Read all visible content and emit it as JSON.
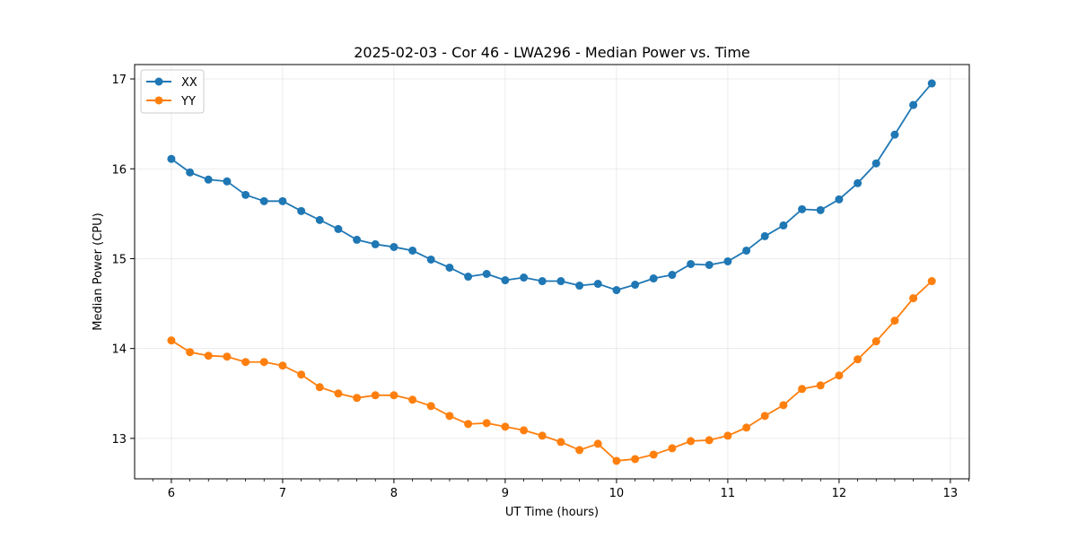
{
  "chart_data": {
    "type": "line",
    "title": "2025-02-03 - Cor 46 - LWA296 - Median Power vs. Time",
    "xlabel": "UT Time (hours)",
    "ylabel": "Median Power (CPU)",
    "xlim": [
      5.67,
      13.17
    ],
    "ylim": [
      12.55,
      17.16
    ],
    "xticks": [
      6,
      7,
      8,
      9,
      10,
      11,
      12,
      13
    ],
    "yticks": [
      13,
      14,
      15,
      16,
      17
    ],
    "grid": true,
    "legend_position": "top-left",
    "x": [
      6.0,
      6.167,
      6.333,
      6.5,
      6.667,
      6.833,
      7.0,
      7.167,
      7.333,
      7.5,
      7.667,
      7.833,
      8.0,
      8.167,
      8.333,
      8.5,
      8.667,
      8.833,
      9.0,
      9.167,
      9.333,
      9.5,
      9.667,
      9.833,
      10.0,
      10.167,
      10.333,
      10.5,
      10.667,
      10.833,
      11.0,
      11.167,
      11.333,
      11.5,
      11.667,
      11.833,
      12.0,
      12.167,
      12.333,
      12.5,
      12.667,
      12.833
    ],
    "series": [
      {
        "name": "XX",
        "color": "#1f77b4",
        "values": [
          16.11,
          15.96,
          15.88,
          15.86,
          15.71,
          15.64,
          15.64,
          15.53,
          15.43,
          15.33,
          15.21,
          15.16,
          15.13,
          15.09,
          14.99,
          14.9,
          14.8,
          14.83,
          14.76,
          14.79,
          14.75,
          14.75,
          14.7,
          14.72,
          14.65,
          14.71,
          14.78,
          14.82,
          14.94,
          14.93,
          14.97,
          15.09,
          15.25,
          15.37,
          15.55,
          15.54,
          15.66,
          15.84,
          16.06,
          16.38,
          16.71,
          16.95
        ]
      },
      {
        "name": "YY",
        "color": "#ff7f0e",
        "values": [
          14.09,
          13.96,
          13.92,
          13.91,
          13.85,
          13.85,
          13.81,
          13.71,
          13.57,
          13.5,
          13.45,
          13.48,
          13.48,
          13.43,
          13.36,
          13.25,
          13.16,
          13.17,
          13.13,
          13.09,
          13.03,
          12.96,
          12.87,
          12.94,
          12.75,
          12.77,
          12.82,
          12.89,
          12.97,
          12.98,
          13.03,
          13.12,
          13.25,
          13.37,
          13.55,
          13.59,
          13.7,
          13.88,
          14.08,
          14.31,
          14.56,
          14.75
        ]
      }
    ]
  }
}
